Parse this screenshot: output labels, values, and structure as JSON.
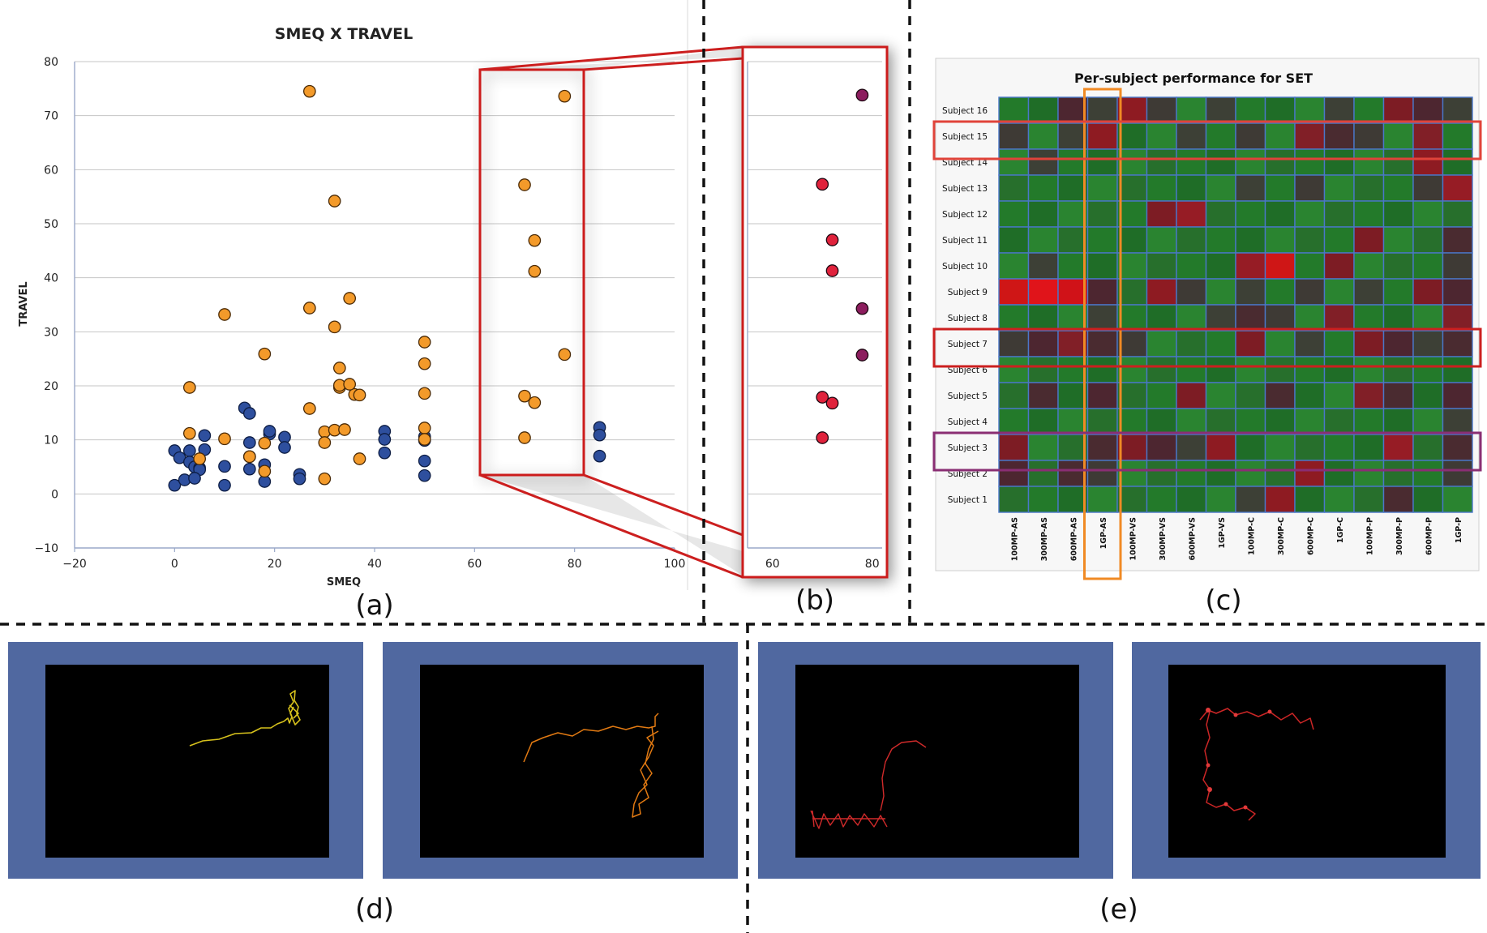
{
  "panel_labels": {
    "a": "(a)",
    "b": "(b)",
    "c": "(c)",
    "d": "(d)",
    "e": "(e)"
  },
  "colors": {
    "orange_point": "#f39a2a",
    "blue_point": "#2e4f9e",
    "highlight_red": "#cc1f1f",
    "purple_point": "#8c1d5e",
    "bright_red_point": "#e0223c",
    "heatmap_grid": "#4a77c9",
    "orange_column_box": "#f08a24",
    "purple_row_box": "#8a2e73",
    "trajectory_bg": "#5068a0"
  },
  "chart_data": [
    {
      "id": "a",
      "type": "scatter",
      "title": "SMEQ X TRAVEL",
      "xlabel": "SMEQ",
      "ylabel": "TRAVEL",
      "xlim": [
        -20,
        100
      ],
      "ylim": [
        -10,
        80
      ],
      "xticks": [
        "−20",
        "0",
        "20",
        "40",
        "60",
        "80",
        "100"
      ],
      "yticks": [
        "−10",
        "0",
        "10",
        "20",
        "30",
        "40",
        "50",
        "60",
        "70",
        "80"
      ],
      "grid": true,
      "series": [
        {
          "color": "orange",
          "x": [
            27,
            32,
            35,
            27,
            10,
            32,
            18,
            33,
            3,
            33,
            36,
            27,
            30,
            32,
            34,
            10,
            18,
            30,
            33,
            35,
            37,
            50,
            50,
            50,
            50,
            50,
            15,
            18,
            3,
            37,
            30,
            5,
            70,
            72,
            72,
            78,
            70,
            72,
            70,
            78
          ],
          "y": [
            74.5,
            54.2,
            36.2,
            34.4,
            33.2,
            30.9,
            25.9,
            23.3,
            19.7,
            19.7,
            18.4,
            15.8,
            11.5,
            11.8,
            11.9,
            10.2,
            9.4,
            9.5,
            20.1,
            20.3,
            18.3,
            28.1,
            24.1,
            18.6,
            12.2,
            10.1,
            6.9,
            4.2,
            11.2,
            6.5,
            2.8,
            6.5,
            57.2,
            46.9,
            41.2,
            25.8,
            18.1,
            16.9,
            10.4,
            73.6
          ]
        },
        {
          "color": "blue",
          "x": [
            0,
            1,
            3,
            3,
            4,
            5,
            6,
            0,
            2,
            5,
            10,
            10,
            14,
            15,
            15,
            15,
            19,
            22,
            22,
            25,
            25,
            15,
            18,
            18,
            19,
            42,
            42,
            42,
            50,
            50,
            50,
            50,
            85,
            85,
            85,
            4,
            6
          ],
          "y": [
            8,
            6.7,
            8,
            5.9,
            5,
            4.8,
            10.8,
            1.6,
            2.6,
            4.5,
            1.6,
            5.1,
            15.9,
            14.9,
            9.5,
            6.9,
            11.1,
            10.5,
            8.6,
            3.6,
            2.8,
            4.6,
            2.3,
            5.4,
            11.6,
            11.6,
            10.1,
            7.6,
            10.6,
            9.9,
            6.1,
            3.4,
            12.3,
            10.9,
            7.0,
            2.9,
            8.2
          ]
        }
      ]
    },
    {
      "id": "b",
      "type": "scatter",
      "xlim": [
        55,
        82
      ],
      "ylim": [
        -10,
        80
      ],
      "xticks": [
        "60",
        "80"
      ],
      "grid": true,
      "points": [
        {
          "x": 78,
          "y": 73.8,
          "color": "purple"
        },
        {
          "x": 70,
          "y": 57.3,
          "color": "red"
        },
        {
          "x": 72,
          "y": 47.0,
          "color": "red"
        },
        {
          "x": 72,
          "y": 41.3,
          "color": "red"
        },
        {
          "x": 78,
          "y": 34.3,
          "color": "purple"
        },
        {
          "x": 78,
          "y": 25.7,
          "color": "purple"
        },
        {
          "x": 70,
          "y": 17.9,
          "color": "red"
        },
        {
          "x": 72,
          "y": 16.8,
          "color": "red"
        },
        {
          "x": 70,
          "y": 10.4,
          "color": "red"
        }
      ]
    },
    {
      "id": "c",
      "type": "heatmap",
      "title": "Per-subject performance for ",
      "title_bold": "SET",
      "rows": [
        "Subject 16",
        "Subject 15",
        "Subject 14",
        "Subject 13",
        "Subject 12",
        "Subject 11",
        "Subject 10",
        "Subject 9",
        "Subject 8",
        "Subject 7",
        "Subject 6",
        "Subject 5",
        "Subject 4",
        "Subject 3",
        "Subject 2",
        "Subject 1"
      ],
      "columns": [
        "100MP-AS",
        "300MP-AS",
        "600MP-AS",
        "1GP-AS",
        "100MP-VS",
        "300MP-VS",
        "600MP-VS",
        "1GP-VS",
        "100MP-C",
        "300MP-C",
        "600MP-C",
        "1GP-C",
        "100MP-P",
        "300MP-P",
        "600MP-P",
        "1GP-P"
      ],
      "cells": [
        "GGDDRDGDGGGDGRDD",
        "DGDRGGDGDGRDDGRG",
        "GDGGGGGGGGGGGGRG",
        "GGGGGGGGDGDGGGDR",
        "GGGGGRRGGGGGGGGG",
        "GGGGGGGGGGGGRGGD",
        "GDGGGGGGRSGRGGGD",
        "SSSDGRDGDGDGDGRD",
        "GGGDGGGDDDGRGGGR",
        "DDRDDGGGRGDGRDDD",
        "GGGGGGGGGGGGGGGG",
        "GDGDGGRGGDGGRDGD",
        "GGGGGGGGGGGGGGGD",
        "RGGDRDDRGGGGGRGD",
        "DGDDGGGGGGRGGGGD",
        "GGGGGGGGDRGGGDGG"
      ]
    }
  ]
}
